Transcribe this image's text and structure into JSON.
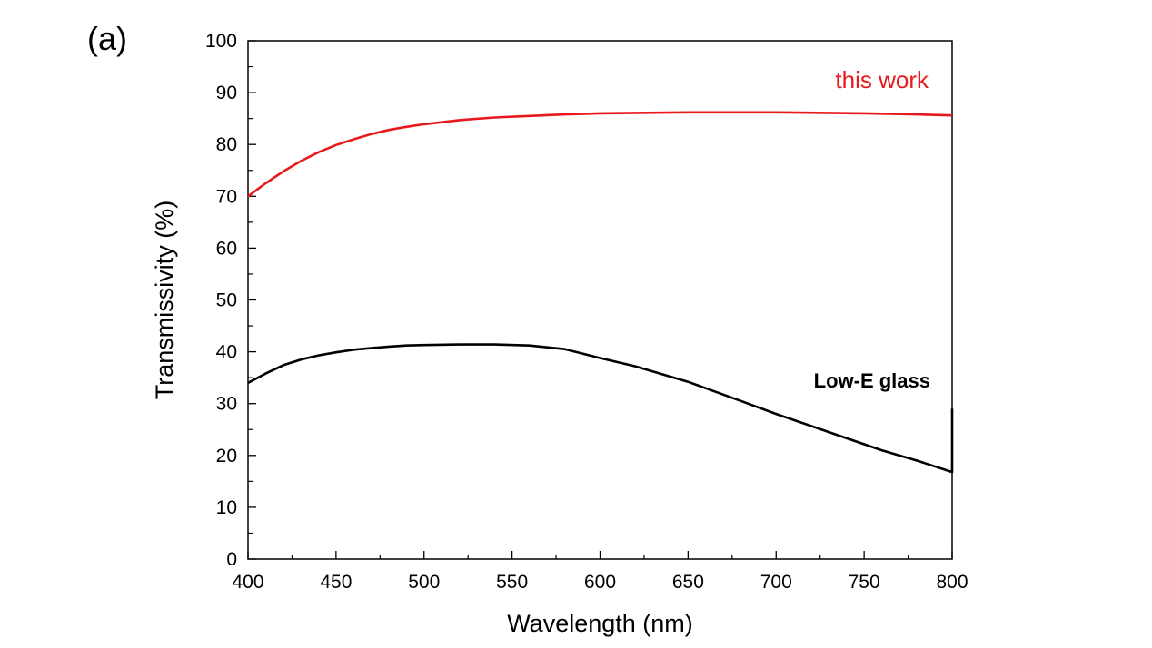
{
  "panel_label": "(a)",
  "chart_data": {
    "type": "line",
    "title": "",
    "xlabel": "Wavelength (nm)",
    "ylabel": "Transmissivity (%)",
    "xlim": [
      400,
      800
    ],
    "ylim": [
      0,
      100
    ],
    "xticks": [
      400,
      450,
      500,
      550,
      600,
      650,
      700,
      750,
      800
    ],
    "yticks": [
      0,
      10,
      20,
      30,
      40,
      50,
      60,
      70,
      80,
      90,
      100
    ],
    "grid": false,
    "series": [
      {
        "name": "this work",
        "color": "#e8191c",
        "x": [
          400,
          410,
          420,
          430,
          440,
          450,
          460,
          470,
          480,
          490,
          500,
          520,
          540,
          560,
          580,
          600,
          620,
          650,
          700,
          750,
          780,
          800
        ],
        "y": [
          70.0,
          72.5,
          74.8,
          76.8,
          78.5,
          79.9,
          81.0,
          82.0,
          82.8,
          83.4,
          83.9,
          84.7,
          85.2,
          85.5,
          85.8,
          86.0,
          86.1,
          86.2,
          86.2,
          86.0,
          85.8,
          85.6
        ]
      },
      {
        "name": "Low-E glass",
        "color": "#000000",
        "x": [
          400,
          410,
          420,
          430,
          440,
          450,
          460,
          470,
          480,
          490,
          500,
          520,
          540,
          560,
          580,
          600,
          620,
          650,
          680,
          700,
          730,
          760,
          780,
          800
        ],
        "y": [
          34.0,
          35.8,
          37.4,
          38.5,
          39.3,
          39.9,
          40.4,
          40.7,
          41.0,
          41.2,
          41.3,
          41.4,
          41.4,
          41.2,
          40.5,
          38.8,
          37.2,
          34.2,
          30.5,
          28.0,
          24.5,
          21.0,
          19.0,
          16.8
        ]
      }
    ],
    "annotations": [
      {
        "text": "this work",
        "series": 0
      },
      {
        "text": "Low-E glass",
        "series": 1
      }
    ]
  }
}
